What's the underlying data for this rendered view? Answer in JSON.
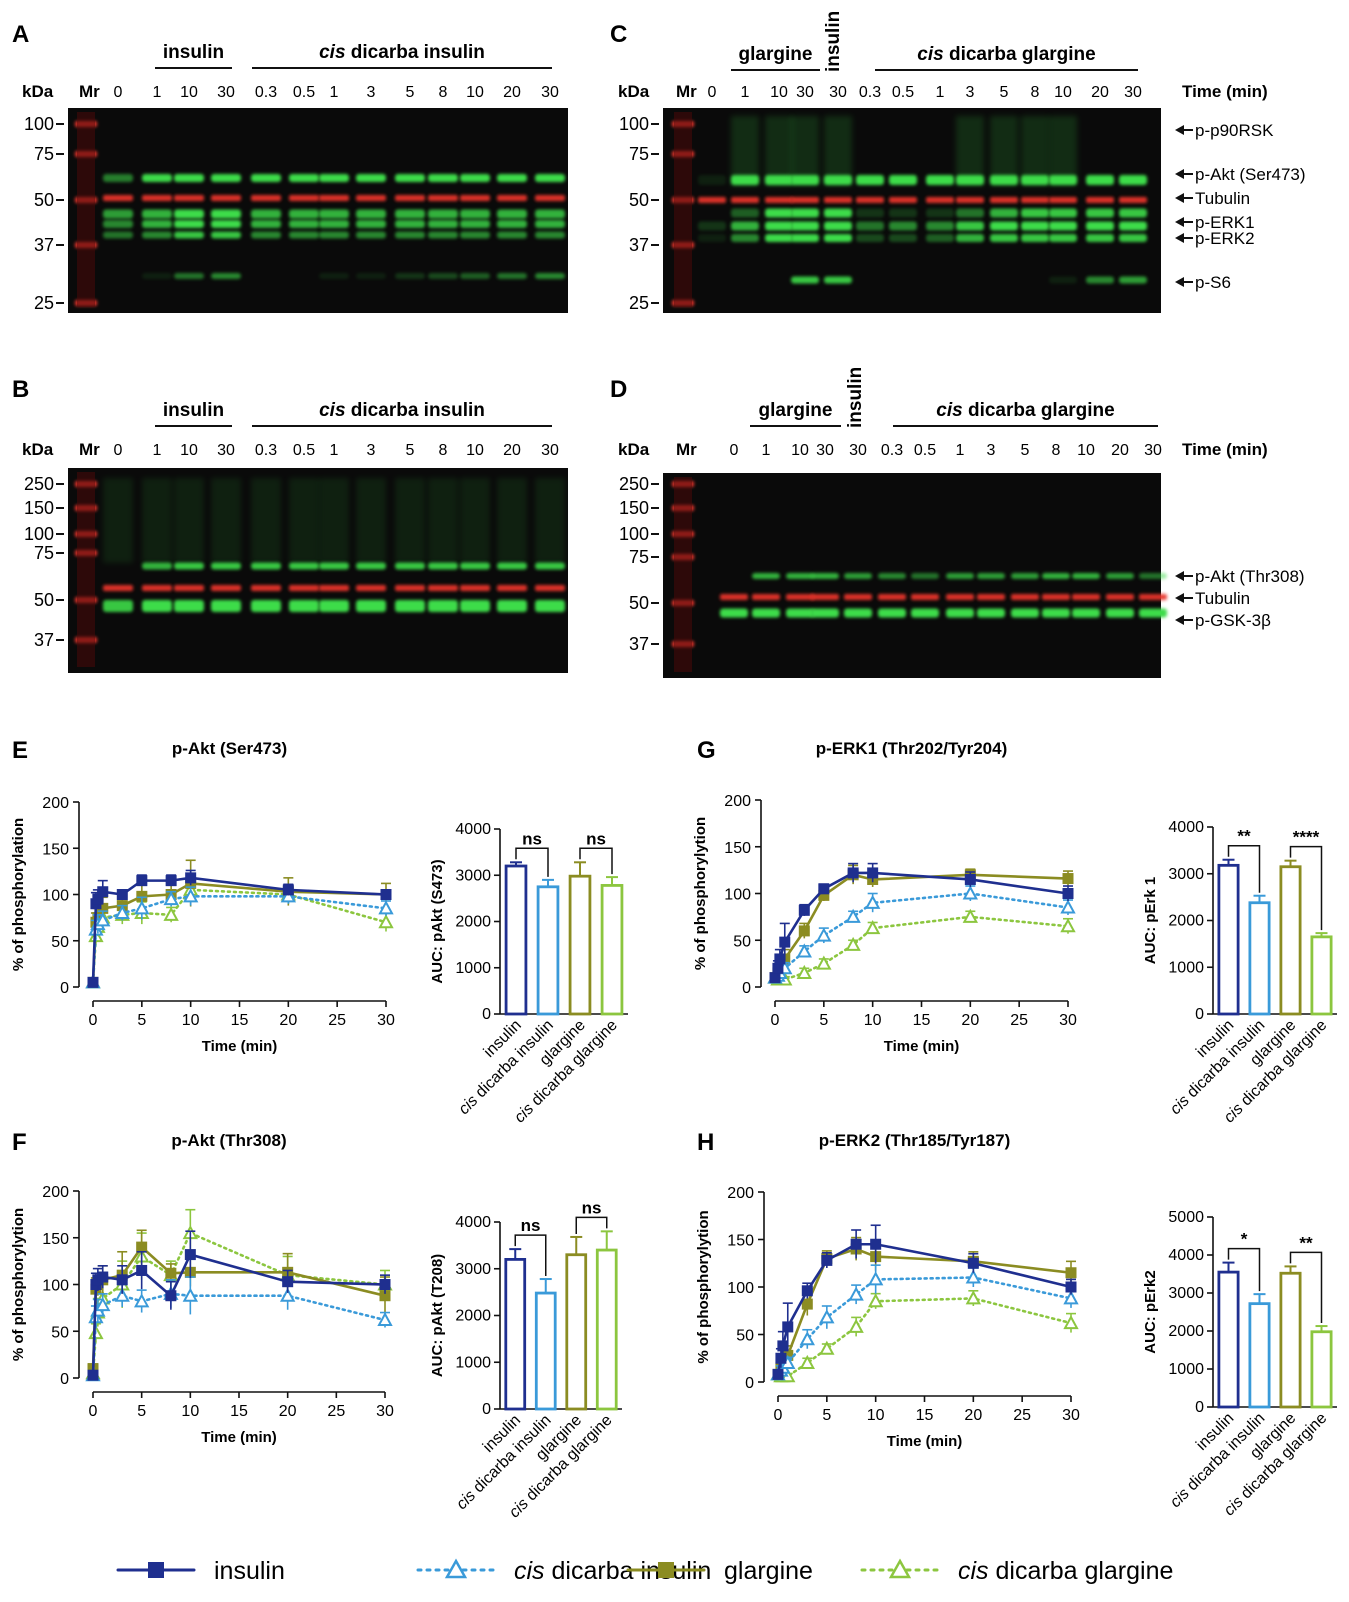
{
  "colors": {
    "insulin": "#1f2f8f",
    "cis_dicarba_insulin": "#3a9ad9",
    "glargine": "#8b8c22",
    "cis_dicarba_glargine": "#8cc63f",
    "tubulin_band": "#e8342c",
    "phospho_band": "#3ddc4a",
    "blot_bg": "#0a0a0a"
  },
  "blots": [
    {
      "panel": "A",
      "groups": [
        {
          "name": "insulin"
        },
        {
          "name": "cis dicarba insulin",
          "italic_prefix": "cis"
        }
      ],
      "kda_label": "kDa",
      "mr_label": "Mr",
      "lanes": [
        "0",
        "1",
        "10",
        "30",
        "0.3",
        "0.5",
        "1",
        "3",
        "5",
        "8",
        "10",
        "20",
        "30"
      ],
      "markers": [
        "100",
        "75",
        "50",
        "37",
        "25"
      ],
      "bands": []
    },
    {
      "panel": "B",
      "groups": [
        {
          "name": "insulin"
        },
        {
          "name": "cis dicarba insulin",
          "italic_prefix": "cis"
        }
      ],
      "kda_label": "kDa",
      "mr_label": "Mr",
      "lanes": [
        "0",
        "1",
        "10",
        "30",
        "0.3",
        "0.5",
        "1",
        "3",
        "5",
        "8",
        "10",
        "20",
        "30"
      ],
      "markers": [
        "250",
        "150",
        "100",
        "75",
        "50",
        "37"
      ],
      "bands": []
    },
    {
      "panel": "C",
      "groups": [
        {
          "name": "glargine"
        },
        {
          "name": "insulin"
        },
        {
          "name": "cis dicarba glargine",
          "italic_prefix": "cis"
        }
      ],
      "kda_label": "kDa",
      "mr_label": "Mr",
      "time_label": "Time (min)",
      "lanes": [
        "0",
        "1",
        "10",
        "30",
        "30",
        "0.3",
        "0.5",
        "1",
        "3",
        "5",
        "8",
        "10",
        "20",
        "30"
      ],
      "markers": [
        "100",
        "75",
        "50",
        "37",
        "25"
      ],
      "bands": [
        "p-p90RSK",
        "p-Akt (Ser473)",
        "Tubulin",
        "p-ERK1",
        "p-ERK2",
        "p-S6"
      ]
    },
    {
      "panel": "D",
      "groups": [
        {
          "name": "glargine"
        },
        {
          "name": "insulin"
        },
        {
          "name": "cis dicarba glargine",
          "italic_prefix": "cis"
        }
      ],
      "kda_label": "kDa",
      "mr_label": "Mr",
      "time_label": "Time (min)",
      "lanes": [
        "0",
        "1",
        "10",
        "30",
        "30",
        "0.3",
        "0.5",
        "1",
        "3",
        "5",
        "8",
        "10",
        "20",
        "30"
      ],
      "markers": [
        "250",
        "150",
        "100",
        "75",
        "50",
        "37"
      ],
      "bands": [
        "p-Akt (Thr308)",
        "Tubulin",
        "p-GSK-3β"
      ]
    }
  ],
  "chart_data": [
    {
      "panel": "E",
      "type": "line",
      "title": "p-Akt (Ser473)",
      "xlabel": "Time (min)",
      "ylabel": "% of phosphorylation",
      "xlim": [
        0,
        30
      ],
      "ylim": [
        0,
        200
      ],
      "xticks": [
        0,
        5,
        10,
        15,
        20,
        25,
        30
      ],
      "yticks": [
        0,
        50,
        100,
        150,
        200
      ],
      "x": [
        0,
        0.3,
        0.5,
        1,
        3,
        5,
        8,
        10,
        20,
        30
      ],
      "series": [
        {
          "name": "insulin",
          "values": [
            5,
            90,
            95,
            103,
            100,
            115,
            115,
            118,
            105,
            100
          ],
          "err": [
            3,
            12,
            10,
            12,
            5,
            6,
            6,
            8,
            6,
            5
          ]
        },
        {
          "name": "cis dicarba insulin",
          "values": [
            5,
            62,
            68,
            72,
            80,
            85,
            95,
            98,
            98,
            85
          ],
          "err": [
            3,
            10,
            10,
            10,
            8,
            12,
            8,
            10,
            8,
            8
          ]
        },
        {
          "name": "glargine",
          "values": [
            5,
            70,
            75,
            85,
            88,
            98,
            100,
            112,
            103,
            100
          ],
          "err": [
            3,
            10,
            10,
            12,
            10,
            12,
            10,
            25,
            15,
            12
          ]
        },
        {
          "name": "cis dicarba glargine",
          "values": [
            5,
            55,
            65,
            75,
            78,
            80,
            78,
            105,
            100,
            70
          ],
          "err": [
            3,
            10,
            10,
            12,
            10,
            12,
            8,
            12,
            10,
            10
          ]
        }
      ]
    },
    {
      "panel": "E_AUC",
      "type": "bar",
      "ylabel": "AUC: pAkt (S473)",
      "ylim": [
        0,
        4000
      ],
      "yticks": [
        0,
        1000,
        2000,
        3000,
        4000
      ],
      "categories": [
        "insulin",
        "cis dicarba insulin",
        "glargine",
        "cis dicarba glargine"
      ],
      "values": [
        3200,
        2750,
        2980,
        2780
      ],
      "err": [
        80,
        150,
        300,
        180
      ],
      "sig": [
        {
          "pair": [
            0,
            1
          ],
          "label": "ns"
        },
        {
          "pair": [
            2,
            3
          ],
          "label": "ns"
        }
      ]
    },
    {
      "panel": "F",
      "type": "line",
      "title": "p-Akt (Thr308)",
      "xlabel": "Time (min)",
      "ylabel": "% of phosphorylytion",
      "xlim": [
        0,
        30
      ],
      "ylim": [
        0,
        200
      ],
      "xticks": [
        0,
        5,
        10,
        15,
        20,
        25,
        30
      ],
      "yticks": [
        0,
        50,
        100,
        150,
        200
      ],
      "x": [
        0,
        0.3,
        0.5,
        1,
        3,
        5,
        8,
        10,
        20,
        30
      ],
      "series": [
        {
          "name": "insulin",
          "values": [
            3,
            100,
            105,
            108,
            105,
            115,
            88,
            132,
            103,
            100
          ],
          "err": [
            3,
            12,
            12,
            12,
            15,
            20,
            15,
            25,
            12,
            10
          ]
        },
        {
          "name": "cis dicarba insulin",
          "values": [
            3,
            65,
            72,
            78,
            88,
            82,
            90,
            88,
            88,
            62
          ],
          "err": [
            3,
            12,
            12,
            12,
            12,
            12,
            15,
            20,
            15,
            8
          ]
        },
        {
          "name": "glargine",
          "values": [
            10,
            95,
            100,
            105,
            110,
            140,
            112,
            113,
            113,
            88
          ],
          "err": [
            5,
            12,
            12,
            15,
            25,
            18,
            10,
            15,
            20,
            20
          ]
        },
        {
          "name": "cis dicarba glargine",
          "values": [
            5,
            48,
            70,
            85,
            100,
            130,
            110,
            155,
            110,
            100
          ],
          "err": [
            3,
            10,
            15,
            20,
            25,
            25,
            15,
            25,
            20,
            15
          ]
        }
      ]
    },
    {
      "panel": "F_AUC",
      "type": "bar",
      "ylabel": "AUC: pAkt (T208)",
      "ylim": [
        0,
        4000
      ],
      "yticks": [
        0,
        1000,
        2000,
        3000,
        4000
      ],
      "categories": [
        "insulin",
        "cis dicarba insulin",
        "glargine",
        "cis dicarba glargine"
      ],
      "values": [
        3200,
        2480,
        3300,
        3400
      ],
      "err": [
        220,
        300,
        380,
        400
      ],
      "sig": [
        {
          "pair": [
            0,
            1
          ],
          "label": "ns"
        },
        {
          "pair": [
            2,
            3
          ],
          "label": "ns"
        }
      ]
    },
    {
      "panel": "G",
      "type": "line",
      "title": "p-ERK1 (Thr202/Tyr204)",
      "xlabel": "Time (min)",
      "ylabel": "% of phosphorylytion",
      "xlim": [
        0,
        30
      ],
      "ylim": [
        0,
        200
      ],
      "xticks": [
        0,
        5,
        10,
        15,
        20,
        25,
        30
      ],
      "yticks": [
        0,
        50,
        100,
        150,
        200
      ],
      "x": [
        0,
        0.3,
        0.5,
        1,
        3,
        5,
        8,
        10,
        20,
        30
      ],
      "series": [
        {
          "name": "insulin",
          "values": [
            10,
            20,
            30,
            48,
            82,
            105,
            122,
            122,
            115,
            100
          ],
          "err": [
            3,
            8,
            10,
            20,
            6,
            5,
            10,
            10,
            8,
            8
          ]
        },
        {
          "name": "cis dicarba insulin",
          "values": [
            10,
            12,
            15,
            20,
            38,
            55,
            75,
            90,
            100,
            85
          ],
          "err": [
            3,
            5,
            5,
            6,
            6,
            8,
            6,
            10,
            8,
            8
          ]
        },
        {
          "name": "glargine",
          "values": [
            10,
            15,
            20,
            30,
            60,
            98,
            120,
            115,
            120,
            116
          ],
          "err": [
            3,
            6,
            8,
            10,
            8,
            6,
            10,
            8,
            6,
            8
          ]
        },
        {
          "name": "cis dicarba glargine",
          "values": [
            10,
            8,
            8,
            8,
            15,
            25,
            45,
            63,
            75,
            65
          ],
          "err": [
            3,
            3,
            3,
            3,
            5,
            5,
            5,
            6,
            6,
            8
          ]
        }
      ]
    },
    {
      "panel": "G_AUC",
      "type": "bar",
      "ylabel": "AUC: pErk 1",
      "ylim": [
        0,
        4000
      ],
      "yticks": [
        0,
        1000,
        2000,
        3000,
        4000
      ],
      "categories": [
        "insulin",
        "cis dicarba insulin",
        "glargine",
        "cis dicarba glargine"
      ],
      "values": [
        3180,
        2380,
        3150,
        1650
      ],
      "err": [
        120,
        150,
        130,
        80
      ],
      "sig": [
        {
          "pair": [
            0,
            1
          ],
          "label": "**"
        },
        {
          "pair": [
            2,
            3
          ],
          "label": "****"
        }
      ]
    },
    {
      "panel": "H",
      "type": "line",
      "title": "p-ERK2 (Thr185/Tyr187)",
      "xlabel": "Time (min)",
      "ylabel": "% of phosphorylytion",
      "xlim": [
        0,
        30
      ],
      "ylim": [
        0,
        200
      ],
      "xticks": [
        0,
        5,
        10,
        15,
        20,
        25,
        30
      ],
      "yticks": [
        0,
        50,
        100,
        150,
        200
      ],
      "x": [
        0,
        0.3,
        0.5,
        1,
        3,
        5,
        8,
        10,
        20,
        30
      ],
      "series": [
        {
          "name": "insulin",
          "values": [
            8,
            25,
            38,
            58,
            96,
            128,
            145,
            145,
            125,
            100
          ],
          "err": [
            3,
            10,
            15,
            25,
            8,
            8,
            15,
            20,
            10,
            8
          ]
        },
        {
          "name": "cis dicarba insulin",
          "values": [
            8,
            12,
            15,
            20,
            45,
            68,
            92,
            108,
            110,
            88
          ],
          "err": [
            3,
            5,
            5,
            6,
            10,
            12,
            10,
            15,
            10,
            10
          ]
        },
        {
          "name": "glargine",
          "values": [
            8,
            15,
            20,
            28,
            82,
            130,
            140,
            132,
            127,
            115
          ],
          "err": [
            3,
            6,
            8,
            10,
            12,
            8,
            12,
            15,
            10,
            12
          ]
        },
        {
          "name": "cis dicarba glargine",
          "values": [
            8,
            6,
            6,
            6,
            20,
            35,
            58,
            85,
            88,
            62
          ],
          "err": [
            3,
            3,
            3,
            3,
            5,
            5,
            10,
            8,
            8,
            10
          ]
        }
      ]
    },
    {
      "panel": "H_AUC",
      "type": "bar",
      "ylabel": "AUC: pErk2",
      "ylim": [
        0,
        5000
      ],
      "yticks": [
        0,
        1000,
        2000,
        3000,
        4000,
        5000
      ],
      "categories": [
        "insulin",
        "cis dicarba insulin",
        "glargine",
        "cis dicarba glargine"
      ],
      "values": [
        3550,
        2720,
        3520,
        1980
      ],
      "err": [
        250,
        250,
        180,
        150
      ],
      "sig": [
        {
          "pair": [
            0,
            1
          ],
          "label": "*"
        },
        {
          "pair": [
            2,
            3
          ],
          "label": "**"
        }
      ]
    }
  ],
  "legend": [
    {
      "name": "insulin",
      "style": "solid-square"
    },
    {
      "name": "cis dicarba insulin",
      "italic_prefix": "cis",
      "style": "dotted-triangle"
    },
    {
      "name": "glargine",
      "style": "solid-square"
    },
    {
      "name": "cis dicarba glargine",
      "italic_prefix": "cis",
      "style": "dotted-triangle"
    }
  ]
}
